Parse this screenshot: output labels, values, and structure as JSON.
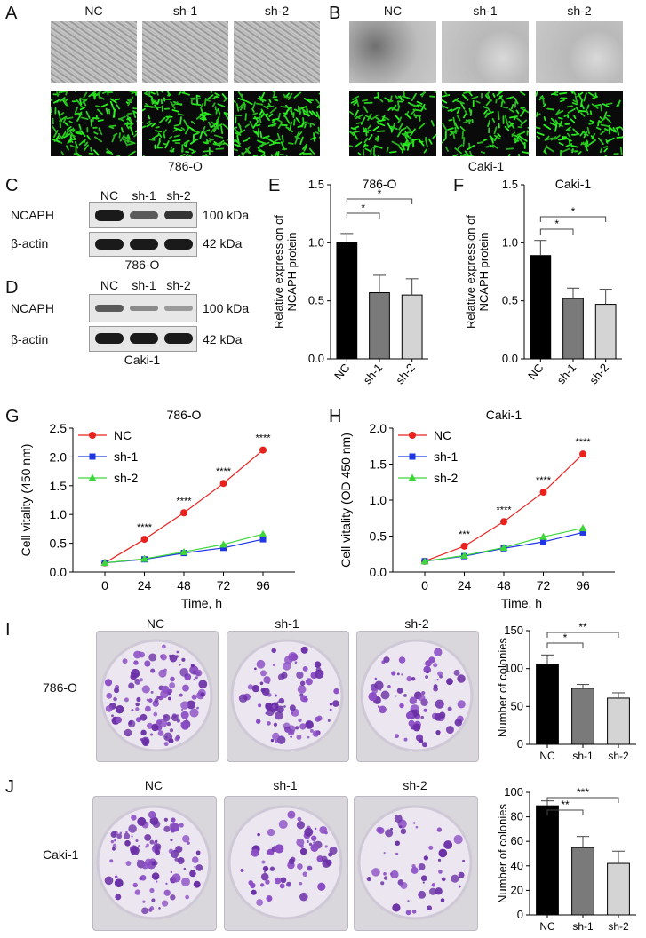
{
  "panels": {
    "A": "A",
    "B": "B",
    "C": "C",
    "D": "D",
    "E": "E",
    "F": "F",
    "G": "G",
    "H": "H",
    "I": "I",
    "J": "J"
  },
  "conditions": [
    "NC",
    "sh-1",
    "sh-2"
  ],
  "cell_lines": {
    "a": "786-O",
    "b": "Caki-1"
  },
  "western": {
    "proteins": [
      "NCAPH",
      "β-actin"
    ],
    "sizes": [
      "100 kDa",
      "42 kDa"
    ]
  },
  "colors": {
    "nc": "#e8221f",
    "sh1": "#1f35e6",
    "sh2": "#3fd63c",
    "bar_nc": "#000000",
    "bar_sh1": "#7a7a7a",
    "bar_sh2": "#d4d4d4"
  },
  "chart_data": [
    {
      "id": "E",
      "type": "bar",
      "title": "786-O",
      "categories": [
        "NC",
        "sh-1",
        "sh-2"
      ],
      "values": [
        1.0,
        0.57,
        0.55
      ],
      "errors": [
        0.08,
        0.15,
        0.14
      ],
      "ylabel": "Relative expression of NCAPH protein",
      "ylim": [
        0,
        1.5
      ],
      "yticks": [
        "0.0",
        "0.5",
        "1.0",
        "1.5"
      ],
      "sig": [
        {
          "from": 0,
          "to": 1,
          "label": "*"
        },
        {
          "from": 0,
          "to": 2,
          "label": "*"
        }
      ]
    },
    {
      "id": "F",
      "type": "bar",
      "title": "Caki-1",
      "categories": [
        "NC",
        "sh-1",
        "sh-2"
      ],
      "values": [
        0.89,
        0.52,
        0.47
      ],
      "errors": [
        0.13,
        0.09,
        0.13
      ],
      "ylabel": "Relative expression of NCAPH protein",
      "ylim": [
        0,
        1.5
      ],
      "yticks": [
        "0.0",
        "0.5",
        "1.0",
        "1.5"
      ],
      "sig": [
        {
          "from": 0,
          "to": 1,
          "label": "*"
        },
        {
          "from": 0,
          "to": 2,
          "label": "*"
        }
      ]
    },
    {
      "id": "G",
      "type": "line",
      "title": "786-O",
      "x": [
        0,
        24,
        48,
        72,
        96
      ],
      "series": [
        {
          "name": "NC",
          "values": [
            0.16,
            0.57,
            1.03,
            1.54,
            2.12
          ]
        },
        {
          "name": "sh-1",
          "values": [
            0.16,
            0.22,
            0.33,
            0.42,
            0.57
          ]
        },
        {
          "name": "sh-2",
          "values": [
            0.16,
            0.23,
            0.35,
            0.48,
            0.66
          ]
        }
      ],
      "annotations": [
        "****",
        "****",
        "****",
        "****"
      ],
      "xlabel": "Time, h",
      "ylabel": "Cell vitality (450 nm)",
      "ylim": [
        0,
        2.5
      ],
      "yticks": [
        "0.0",
        "0.5",
        "1.0",
        "1.5",
        "2.0",
        "2.5"
      ],
      "xticks": [
        "0",
        "24",
        "48",
        "72",
        "96"
      ]
    },
    {
      "id": "H",
      "type": "line",
      "title": "Caki-1",
      "x": [
        0,
        24,
        48,
        72,
        96
      ],
      "series": [
        {
          "name": "NC",
          "values": [
            0.15,
            0.36,
            0.7,
            1.11,
            1.64
          ]
        },
        {
          "name": "sh-1",
          "values": [
            0.15,
            0.22,
            0.33,
            0.42,
            0.55
          ]
        },
        {
          "name": "sh-2",
          "values": [
            0.15,
            0.23,
            0.34,
            0.49,
            0.61
          ]
        }
      ],
      "annotations": [
        "***",
        "****",
        "****",
        "****"
      ],
      "xlabel": "Time, h",
      "ylabel": "Cell vitality (OD 450 nm)",
      "ylim": [
        0,
        2.0
      ],
      "yticks": [
        "0.0",
        "0.5",
        "1.0",
        "1.5",
        "2.0"
      ],
      "xticks": [
        "0",
        "24",
        "48",
        "72",
        "96"
      ]
    },
    {
      "id": "I",
      "type": "bar",
      "title": "",
      "categories": [
        "NC",
        "sh-1",
        "sh-2"
      ],
      "values": [
        105,
        74,
        61
      ],
      "errors": [
        13,
        5,
        7
      ],
      "ylabel": "Number of colonies",
      "ylim": [
        0,
        150
      ],
      "yticks": [
        "0",
        "50",
        "100",
        "150"
      ],
      "sig": [
        {
          "from": 0,
          "to": 1,
          "label": "*"
        },
        {
          "from": 0,
          "to": 2,
          "label": "**"
        }
      ]
    },
    {
      "id": "J",
      "type": "bar",
      "title": "",
      "categories": [
        "NC",
        "sh-1",
        "sh-2"
      ],
      "values": [
        89,
        55,
        42
      ],
      "errors": [
        4,
        9,
        10
      ],
      "ylabel": "Number of colonies",
      "ylim": [
        0,
        100
      ],
      "yticks": [
        "0",
        "20",
        "40",
        "60",
        "80",
        "100"
      ],
      "sig": [
        {
          "from": 0,
          "to": 1,
          "label": "**"
        },
        {
          "from": 0,
          "to": 2,
          "label": "***"
        }
      ]
    }
  ]
}
